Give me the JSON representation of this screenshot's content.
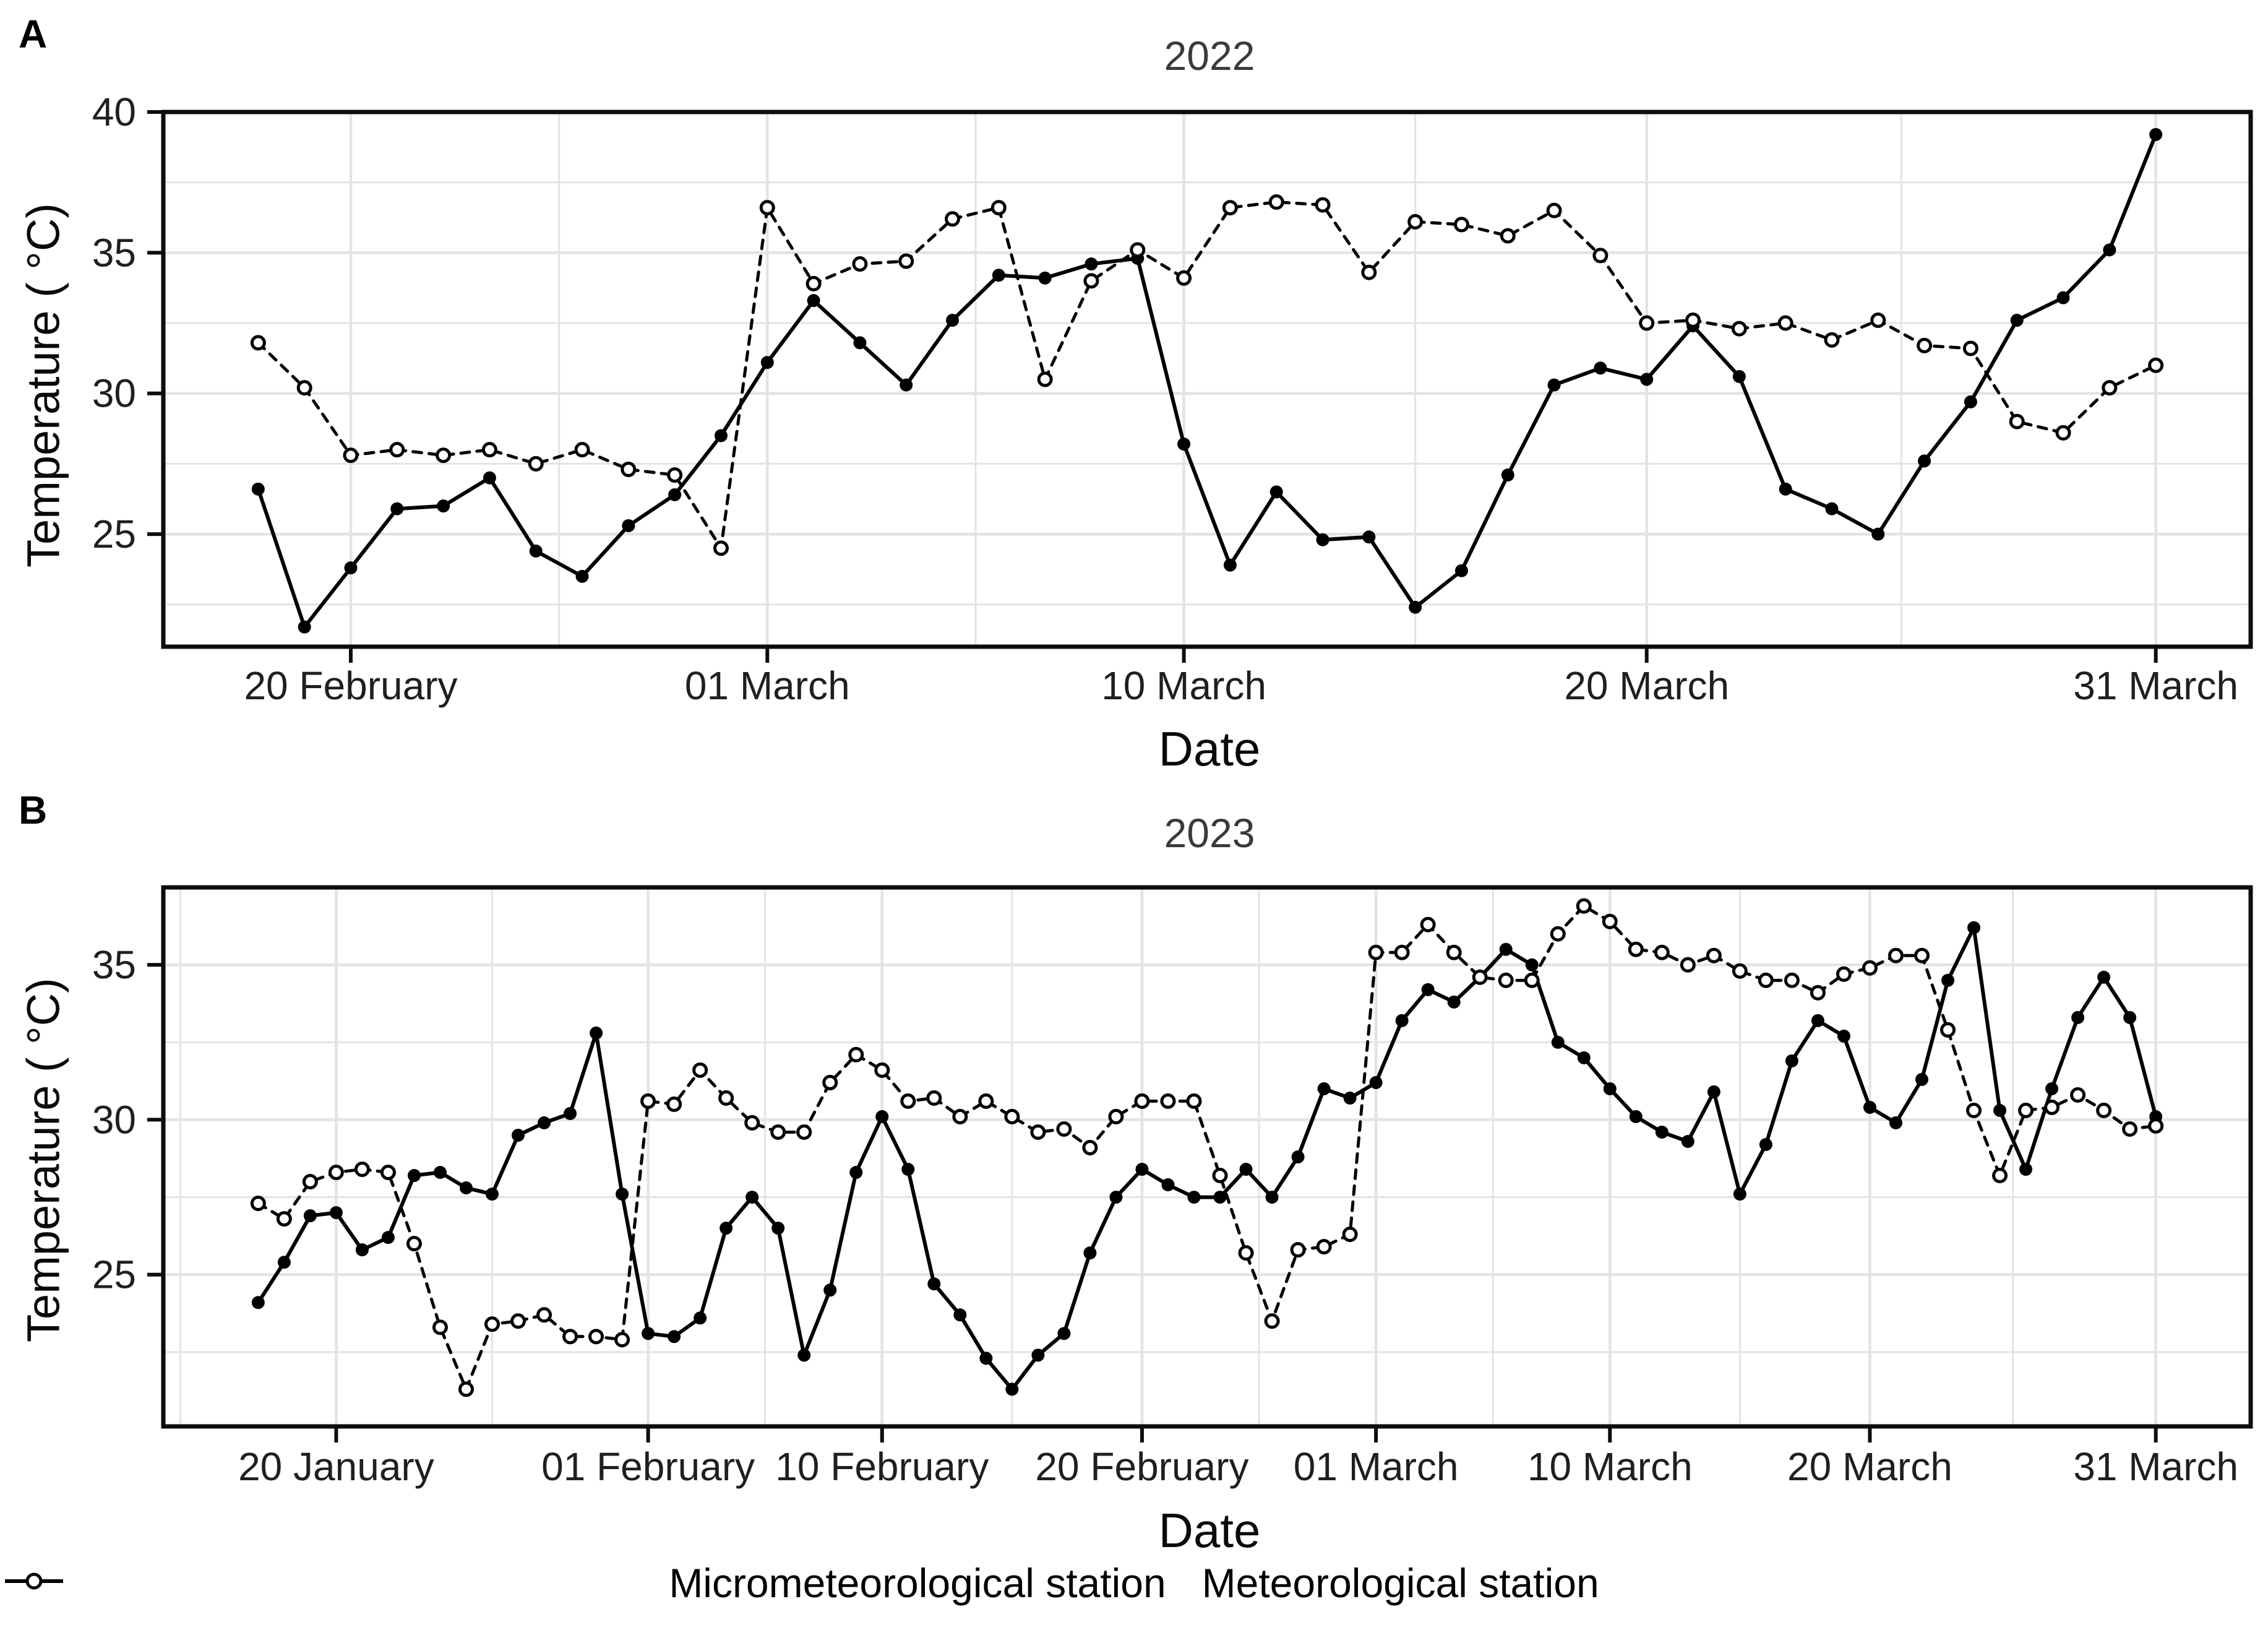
{
  "figure": {
    "panel_a_letter": "A",
    "panel_b_letter": "B",
    "background": "#ffffff",
    "accent_color": "#000000",
    "gridline_color": "#e3e3e3"
  },
  "chart_data": [
    {
      "type": "line",
      "panel": "A",
      "title": "2022",
      "xlabel": "Date",
      "ylabel": "Temperature ( °C)",
      "ylim": [
        21.0,
        40.0
      ],
      "yticks": [
        25,
        30,
        35,
        40
      ],
      "minor_yticks": [
        22.5,
        27.5,
        32.5,
        37.5
      ],
      "grid": true,
      "legend_position": "bottom",
      "x_is_daily_dates": true,
      "xticks": [
        {
          "index": 2,
          "label": "20 February"
        },
        {
          "index": 11,
          "label": "01 March"
        },
        {
          "index": 20,
          "label": "10 March"
        },
        {
          "index": 30,
          "label": "20 March"
        },
        {
          "index": 41,
          "label": "31 March"
        }
      ],
      "series": [
        {
          "name": "Micrometeorological station",
          "style": "solid",
          "marker": "filled-circle",
          "values": [
            26.6,
            21.7,
            23.8,
            25.9,
            26.0,
            27.0,
            24.4,
            23.5,
            25.3,
            26.4,
            28.5,
            31.1,
            33.3,
            31.8,
            30.3,
            32.6,
            34.2,
            34.1,
            34.6,
            34.8,
            28.2,
            23.9,
            26.5,
            24.8,
            24.9,
            22.4,
            23.7,
            27.1,
            30.3,
            30.9,
            30.5,
            32.4,
            30.6,
            26.6,
            25.9,
            25.0,
            27.6,
            29.7,
            32.6,
            33.4,
            35.1,
            39.2
          ]
        },
        {
          "name": "Meteorological station",
          "style": "dashed",
          "marker": "open-circle",
          "values": [
            31.8,
            30.2,
            27.8,
            28.0,
            27.8,
            28.0,
            27.5,
            28.0,
            27.3,
            27.1,
            24.5,
            36.6,
            33.9,
            34.6,
            34.7,
            36.2,
            36.6,
            30.5,
            34.0,
            35.1,
            34.1,
            36.6,
            36.8,
            36.7,
            34.3,
            36.1,
            36.0,
            35.6,
            36.5,
            34.9,
            32.5,
            32.6,
            32.3,
            32.5,
            31.9,
            32.6,
            31.7,
            31.6,
            29.0,
            28.6,
            30.2,
            31.0
          ]
        }
      ]
    },
    {
      "type": "line",
      "panel": "B",
      "title": "2023",
      "xlabel": "Date",
      "ylabel": "Temperature ( °C)",
      "ylim": [
        20.1,
        37.5
      ],
      "yticks": [
        25,
        30,
        35
      ],
      "minor_yticks": [
        22.5,
        27.5,
        32.5,
        37.5
      ],
      "grid": true,
      "legend_position": "bottom",
      "x_is_daily_dates": true,
      "xticks": [
        {
          "index": 3,
          "label": "20 January"
        },
        {
          "index": 15,
          "label": "01 February"
        },
        {
          "index": 24,
          "label": "10 February"
        },
        {
          "index": 34,
          "label": "20 February"
        },
        {
          "index": 43,
          "label": "01 March"
        },
        {
          "index": 52,
          "label": "10 March"
        },
        {
          "index": 62,
          "label": "20 March"
        },
        {
          "index": 73,
          "label": "31 March"
        }
      ],
      "series": [
        {
          "name": "Micrometeorological station",
          "style": "solid",
          "marker": "filled-circle",
          "values": [
            24.1,
            25.4,
            26.9,
            27.0,
            25.8,
            26.2,
            28.2,
            28.3,
            27.8,
            27.6,
            29.5,
            29.9,
            30.2,
            32.8,
            27.6,
            23.1,
            23.0,
            23.6,
            26.5,
            27.5,
            26.5,
            22.4,
            24.5,
            28.3,
            30.1,
            28.4,
            24.7,
            23.7,
            22.3,
            21.3,
            22.4,
            23.1,
            25.7,
            27.5,
            28.4,
            27.9,
            27.5,
            27.5,
            28.4,
            27.5,
            28.8,
            31.0,
            30.7,
            31.2,
            33.2,
            34.2,
            33.8,
            34.6,
            35.5,
            35.0,
            32.5,
            32.0,
            31.0,
            30.1,
            29.6,
            29.3,
            30.9,
            27.6,
            29.2,
            31.9,
            33.2,
            32.7,
            30.4,
            29.9,
            31.3,
            34.5,
            36.2,
            30.3,
            28.4,
            31.0,
            33.3,
            34.6,
            33.3,
            30.1
          ]
        },
        {
          "name": "Meteorological station",
          "style": "dashed",
          "marker": "open-circle",
          "values": [
            27.3,
            26.8,
            28.0,
            28.3,
            28.4,
            28.3,
            26.0,
            23.3,
            21.3,
            23.4,
            23.5,
            23.7,
            23.0,
            23.0,
            22.9,
            30.6,
            30.5,
            31.6,
            30.7,
            29.9,
            29.6,
            29.6,
            31.2,
            32.1,
            31.6,
            30.6,
            30.7,
            30.1,
            30.6,
            30.1,
            29.6,
            29.7,
            29.1,
            30.1,
            30.6,
            30.6,
            30.6,
            28.2,
            25.7,
            23.5,
            25.8,
            25.9,
            26.3,
            35.4,
            35.4,
            36.3,
            35.4,
            34.6,
            34.5,
            34.5,
            36.0,
            36.9,
            36.4,
            35.5,
            35.4,
            35.0,
            35.3,
            34.8,
            34.5,
            34.5,
            34.1,
            34.7,
            34.9,
            35.3,
            35.3,
            32.9,
            30.3,
            28.2,
            30.3,
            30.4,
            30.8,
            30.3,
            29.7,
            29.8
          ]
        }
      ]
    }
  ],
  "legend": {
    "items": [
      {
        "label": "Micrometeorological station",
        "key": "solid-line-filled-circle"
      },
      {
        "label": "Meteorological station",
        "key": "dashed-line-open-circle"
      }
    ]
  }
}
